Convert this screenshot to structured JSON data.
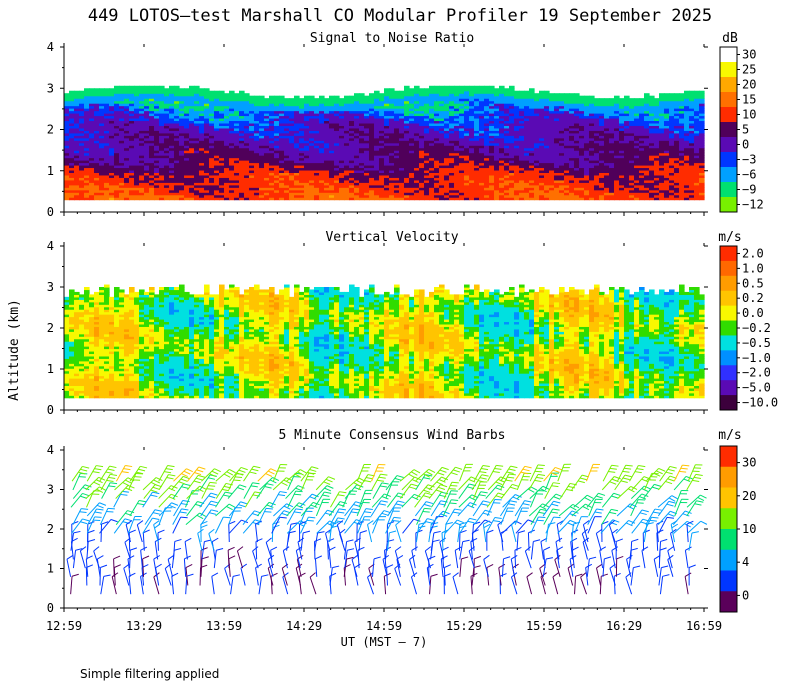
{
  "figure": {
    "title": "449 LOTOS—test Marshall CO Modular Profiler 19 September 2025",
    "ylabel": "Altitude (km)",
    "xlabel": "UT  (MST — 7)",
    "footnote": "Simple filtering applied"
  },
  "chart_data": [
    {
      "type": "heatmap",
      "title": "Signal to Noise Ratio",
      "units": "dB",
      "xlabel": "UT  (MST — 7)",
      "ylabel": "Altitude (km)",
      "x_ticks": [
        "12:59",
        "13:29",
        "13:59",
        "14:29",
        "14:59",
        "15:29",
        "15:59",
        "16:29",
        "16:59"
      ],
      "y_ticks": [
        0,
        1,
        2,
        3,
        4
      ],
      "ylim": [
        0,
        4
      ],
      "colorbar_labels": [
        "30",
        "25",
        "20",
        "15",
        "10",
        "5",
        "0",
        "−3",
        "−6",
        "−9",
        "−12"
      ],
      "colorbar_colors": [
        "#ffffff",
        "#f8f800",
        "#ffa800",
        "#ff7000",
        "#ff2c00",
        "#50005a",
        "#5a0ab4",
        "#0036ff",
        "#00a0ff",
        "#00e070",
        "#78f000"
      ],
      "profile_altitudes_km": [
        0.3,
        0.6,
        0.9,
        1.2,
        1.5,
        1.8,
        2.1,
        2.4,
        2.7,
        3.0
      ],
      "profile_snr_db": [
        12,
        10,
        8,
        4,
        2,
        0,
        -2,
        -5,
        -8,
        -11
      ],
      "top_of_data_km": 2.9
    },
    {
      "type": "heatmap",
      "title": "Vertical Velocity",
      "units": "m/s",
      "xlabel": "UT  (MST — 7)",
      "ylabel": "Altitude (km)",
      "x_ticks": [
        "12:59",
        "13:29",
        "13:59",
        "14:29",
        "14:59",
        "15:29",
        "15:59",
        "16:29",
        "16:59"
      ],
      "y_ticks": [
        0,
        1,
        2,
        3,
        4
      ],
      "ylim": [
        0,
        4
      ],
      "colorbar_labels": [
        "2.0",
        "1.0",
        "0.5",
        "0.2",
        "0.0",
        "−0.2",
        "−0.5",
        "−1.0",
        "−2.0",
        "−5.0",
        "−10.0"
      ],
      "colorbar_colors": [
        "#ff2c00",
        "#ff6800",
        "#ff9c00",
        "#ffc400",
        "#f8f800",
        "#30dc00",
        "#00e0e0",
        "#0090ff",
        "#3030ff",
        "#5a0ab4",
        "#3c003c"
      ],
      "typical_range_ms": [
        -0.5,
        0.5
      ],
      "top_of_data_km": 2.9
    },
    {
      "type": "wind_barbs",
      "title": "5 Minute Consensus Wind Barbs",
      "units": "m/s",
      "xlabel": "UT  (MST — 7)",
      "ylabel": "Altitude (km)",
      "x_ticks": [
        "12:59",
        "13:29",
        "13:59",
        "14:29",
        "14:59",
        "15:29",
        "15:59",
        "16:29",
        "16:59"
      ],
      "y_ticks": [
        0,
        1,
        2,
        3,
        4
      ],
      "ylim": [
        0,
        4
      ],
      "colorbar_labels": [
        "30",
        "20",
        "10",
        "4",
        "0"
      ],
      "colorbar_colors": [
        "#ff2c00",
        "#ff9c00",
        "#ffc400",
        "#78f000",
        "#00e070",
        "#00a0ff",
        "#0036ff",
        "#5a005a"
      ],
      "speed_by_level_ms": [
        [
          0.5,
          4
        ],
        [
          1.5,
          6
        ],
        [
          2.3,
          10
        ],
        [
          2.8,
          12
        ],
        [
          3.2,
          14
        ]
      ]
    }
  ]
}
